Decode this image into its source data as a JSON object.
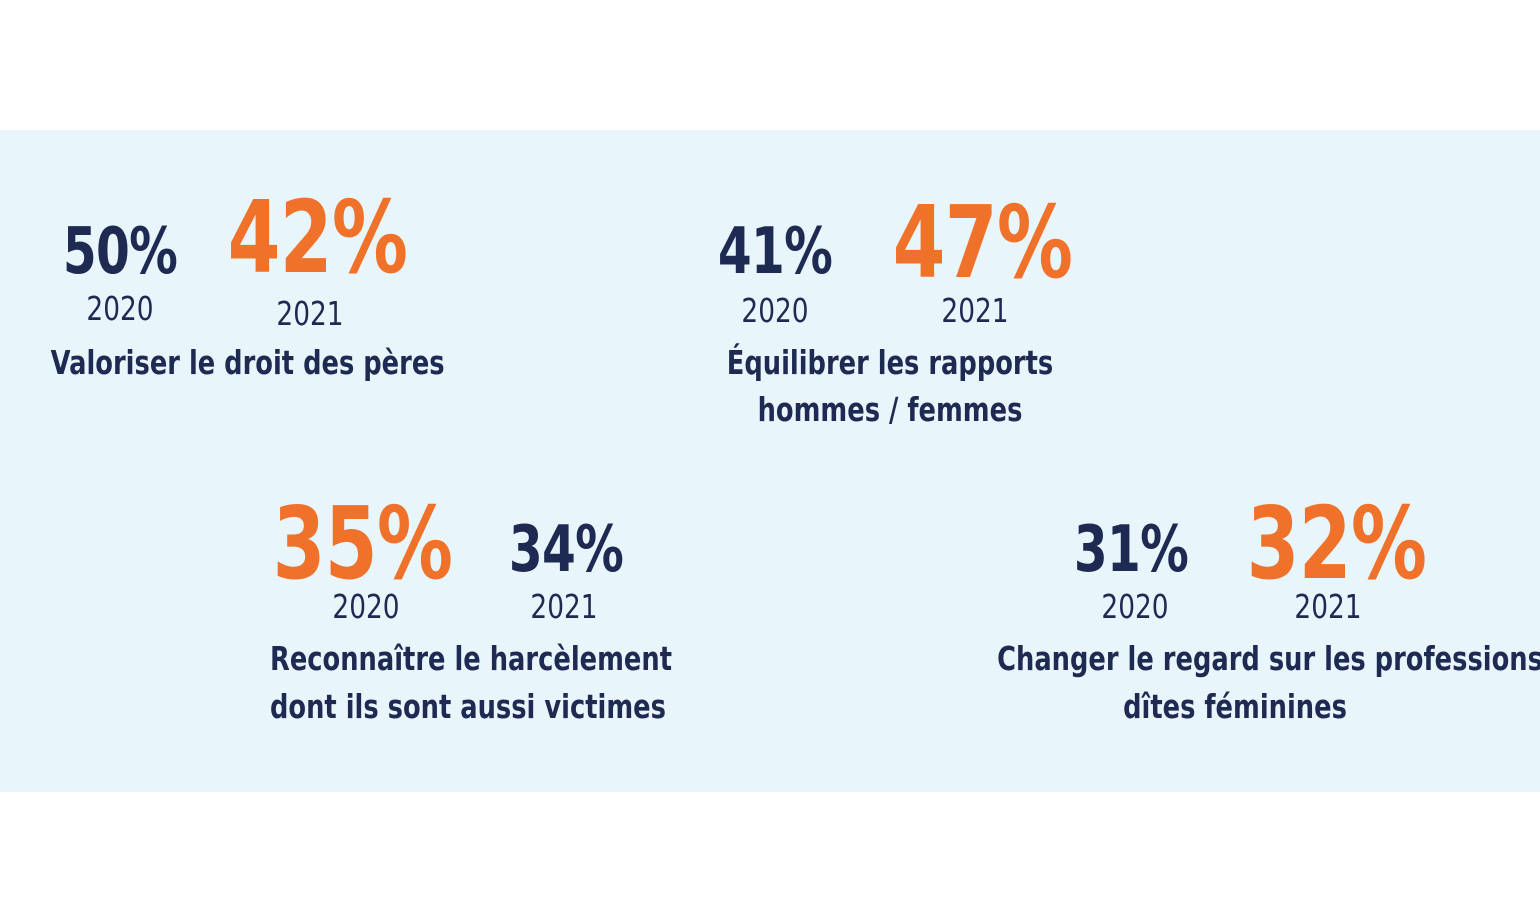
{
  "chart_data": [
    {
      "type": "table",
      "categories": [
        "2020",
        "2021"
      ],
      "values": [
        "50%",
        "42%"
      ],
      "label": "Valoriser le droit des pères"
    },
    {
      "type": "table",
      "categories": [
        "2020",
        "2021"
      ],
      "values": [
        "41%",
        "47%"
      ],
      "label_lines": [
        "Équilibrer les rapports",
        "hommes / femmes"
      ]
    },
    {
      "type": "table",
      "categories": [
        "2020",
        "2021"
      ],
      "values": [
        "35%",
        "34%"
      ],
      "label_lines": [
        "Reconnaître le harcèlement",
        "dont ils sont aussi victimes"
      ]
    },
    {
      "type": "table",
      "categories": [
        "2020",
        "2021"
      ],
      "values": [
        "31%",
        "32%"
      ],
      "label_lines": [
        "Changer le regard sur les professions",
        "dîtes féminines"
      ]
    }
  ],
  "colors": {
    "background_panel": "#e8f5fb",
    "navy": "#1f2a52",
    "orange": "#f0722a"
  }
}
